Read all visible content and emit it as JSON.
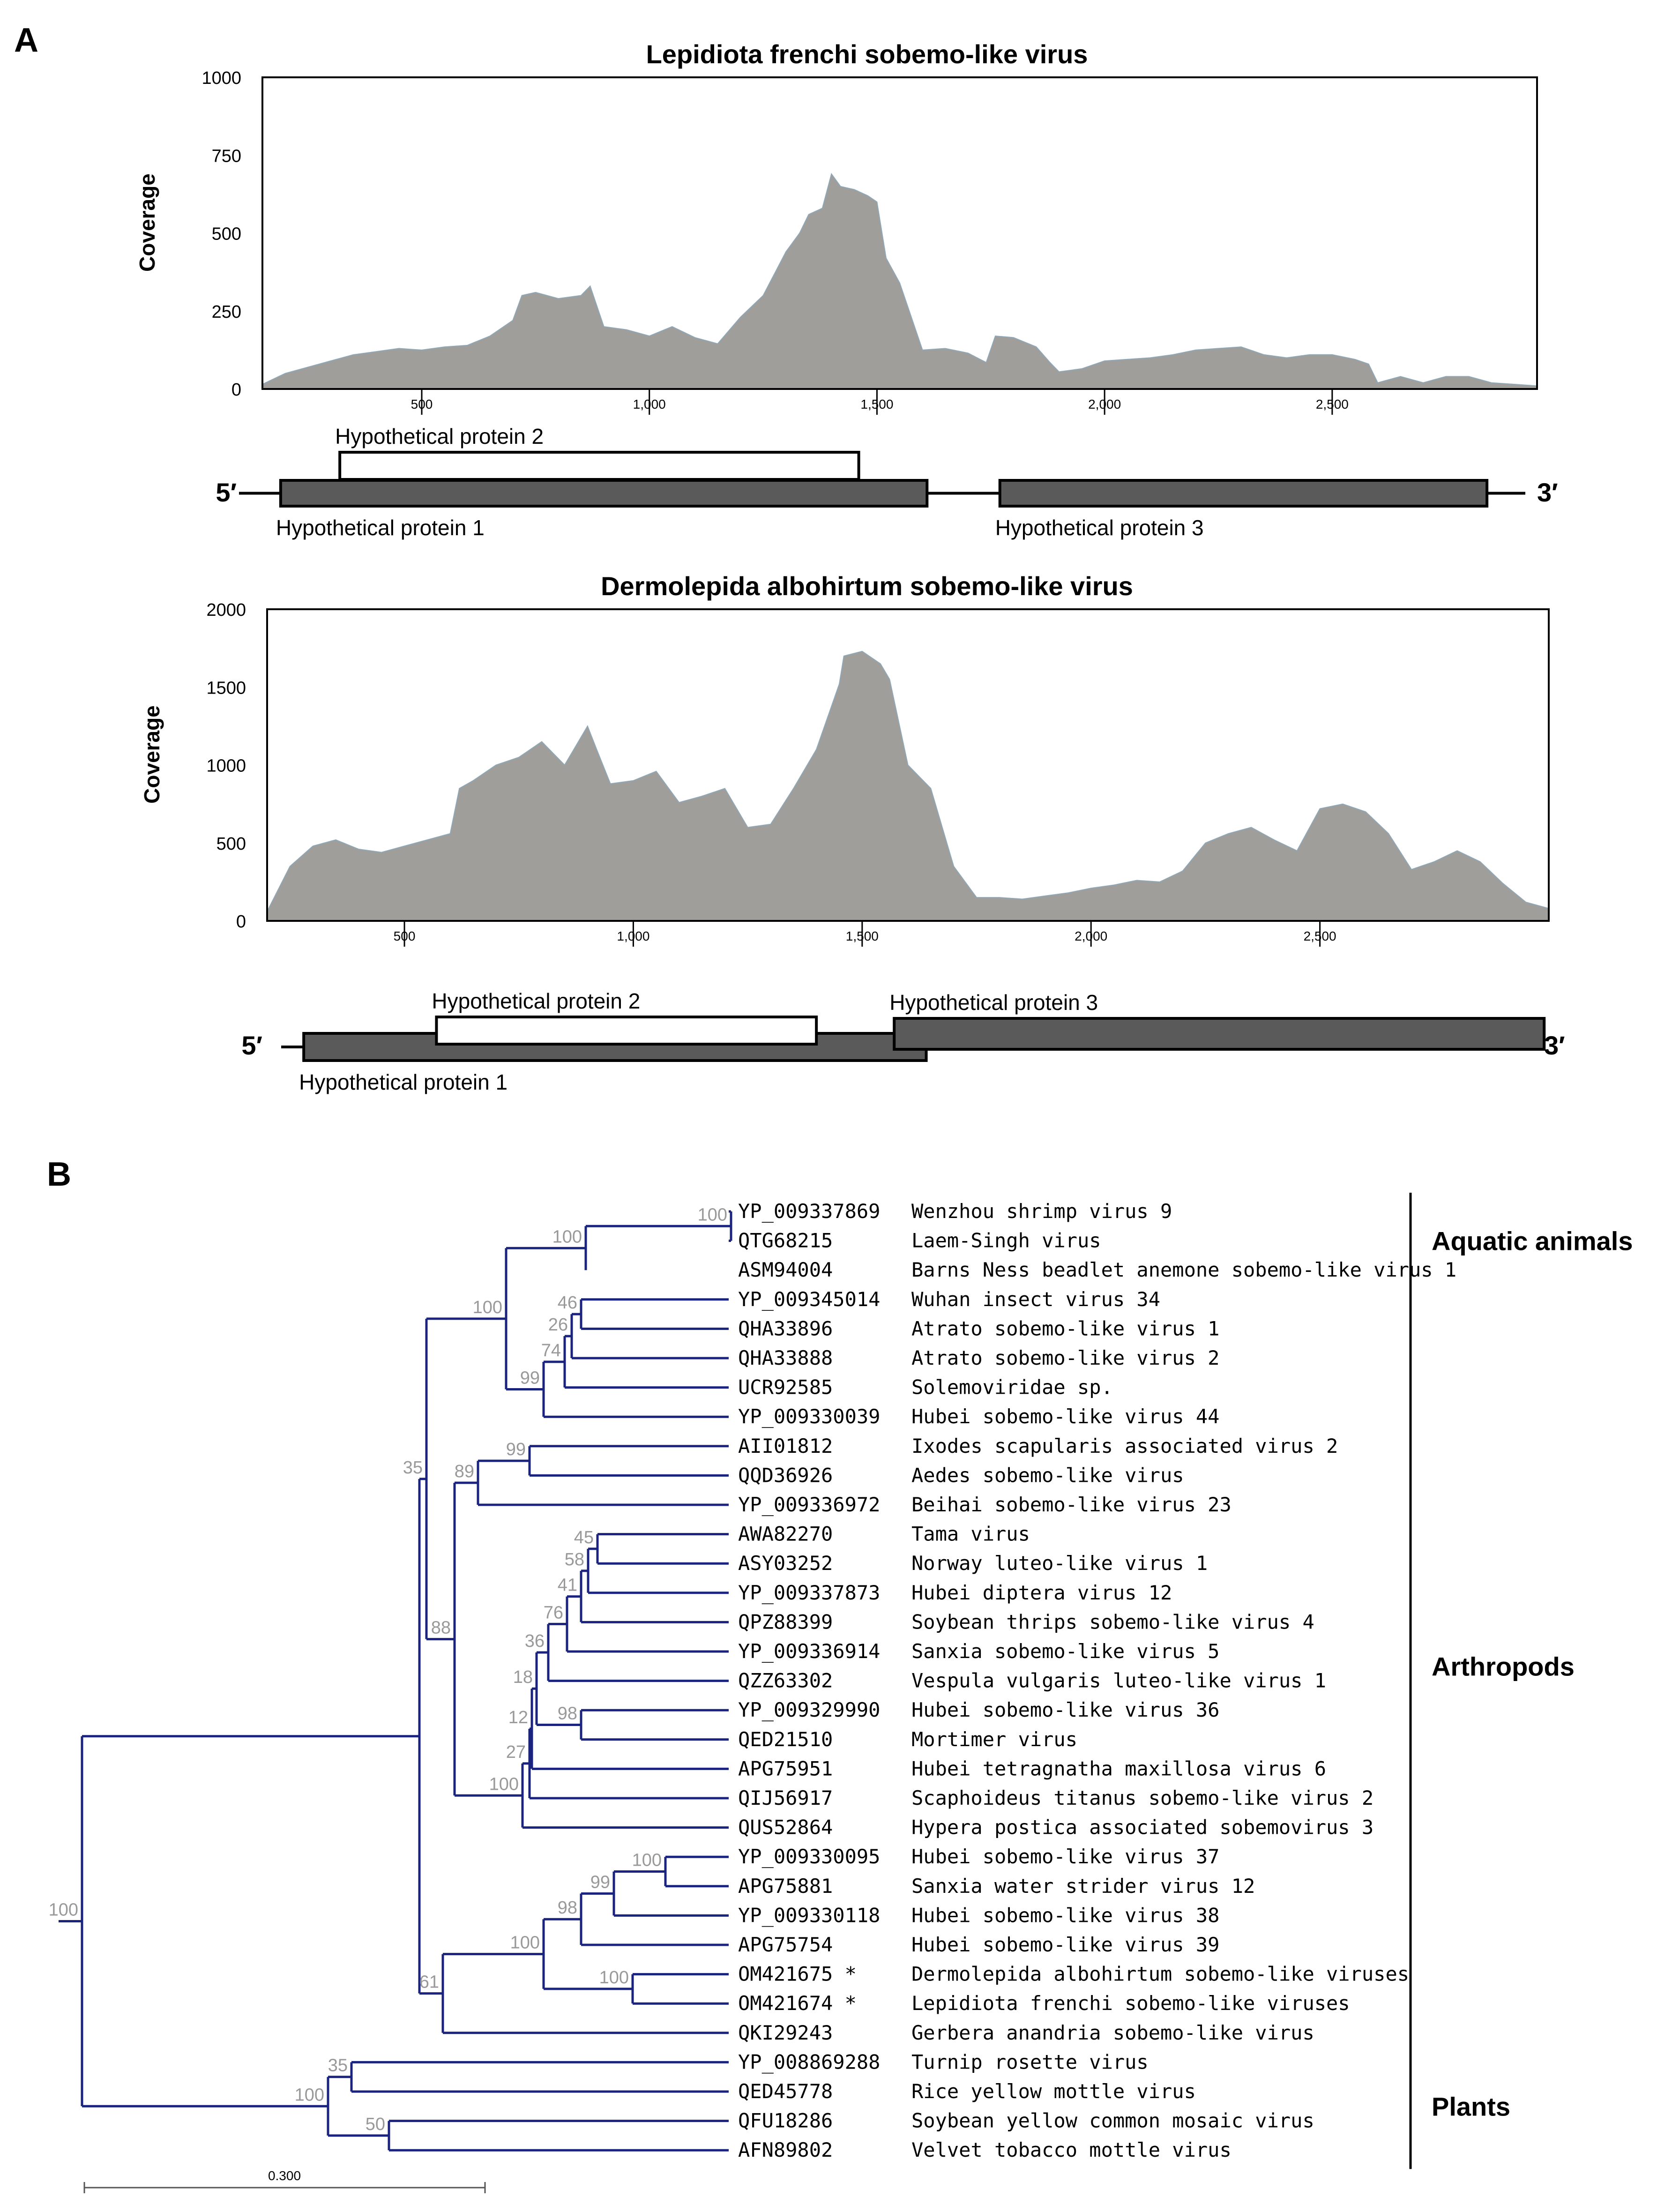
{
  "colors": {
    "coverage_fill": "#a09e9b",
    "coverage_edge": "#8fa8b8",
    "gene_dark": "#5a5a5a",
    "gene_light": "#ffffff",
    "tree": "#1a237e",
    "bootstrap": "#999999"
  },
  "panel_a": {
    "label": "A",
    "ylabel": "Coverage",
    "end5": "5′",
    "end3": "3′"
  },
  "panel_b": {
    "label": "B"
  },
  "chart_data": [
    {
      "type": "area",
      "title": "Lepidiota frenchi sobemo-like virus",
      "ylabel": "Coverage",
      "xlim": [
        150,
        2950
      ],
      "ylim": [
        0,
        1000
      ],
      "yticks": [
        "0",
        "250",
        "500",
        "750",
        "1000"
      ],
      "xticks": [
        "500",
        "1,000",
        "1,500",
        "2,000",
        "2,500"
      ],
      "x": [
        150,
        200,
        250,
        300,
        350,
        400,
        450,
        500,
        550,
        600,
        650,
        700,
        720,
        750,
        800,
        850,
        870,
        900,
        950,
        1000,
        1050,
        1100,
        1150,
        1200,
        1250,
        1300,
        1330,
        1350,
        1380,
        1400,
        1420,
        1450,
        1480,
        1500,
        1520,
        1550,
        1600,
        1650,
        1700,
        1740,
        1760,
        1800,
        1850,
        1880,
        1900,
        1950,
        2000,
        2050,
        2100,
        2150,
        2200,
        2250,
        2300,
        2350,
        2400,
        2450,
        2500,
        2550,
        2580,
        2600,
        2650,
        2700,
        2750,
        2800,
        2850,
        2900,
        2950
      ],
      "y": [
        15,
        50,
        70,
        90,
        110,
        120,
        130,
        125,
        135,
        140,
        170,
        220,
        300,
        310,
        290,
        300,
        330,
        200,
        190,
        170,
        200,
        165,
        145,
        230,
        300,
        440,
        500,
        560,
        580,
        690,
        650,
        640,
        620,
        600,
        420,
        340,
        125,
        130,
        115,
        85,
        170,
        165,
        135,
        85,
        55,
        65,
        90,
        95,
        100,
        110,
        125,
        130,
        135,
        110,
        100,
        110,
        110,
        95,
        80,
        20,
        40,
        20,
        40,
        40,
        20,
        15,
        10
      ],
      "genes": [
        {
          "name": "Hypothetical protein 1",
          "start": 190,
          "end": 1610,
          "fill": "dark",
          "label_pos": "below"
        },
        {
          "name": "Hypothetical protein 2",
          "start": 320,
          "end": 1460,
          "fill": "light",
          "label_pos": "above"
        },
        {
          "name": "Hypothetical protein 3",
          "start": 1770,
          "end": 2840,
          "fill": "dark",
          "label_pos": "below"
        }
      ]
    },
    {
      "type": "area",
      "title": "Dermolepida albohirtum sobemo-like virus",
      "ylabel": "Coverage",
      "xlim": [
        200,
        3000
      ],
      "ylim": [
        0,
        2000
      ],
      "yticks": [
        "0",
        "500",
        "1000",
        "1500",
        "2000"
      ],
      "xticks": [
        "500",
        "1,000",
        "1,500",
        "2,000",
        "2,500"
      ],
      "x": [
        200,
        250,
        300,
        350,
        400,
        450,
        500,
        550,
        600,
        620,
        650,
        700,
        750,
        800,
        850,
        900,
        920,
        950,
        1000,
        1050,
        1100,
        1150,
        1200,
        1250,
        1300,
        1350,
        1400,
        1450,
        1460,
        1500,
        1540,
        1560,
        1600,
        1650,
        1700,
        1750,
        1800,
        1850,
        1900,
        1950,
        2000,
        2050,
        2100,
        2150,
        2200,
        2250,
        2300,
        2350,
        2400,
        2450,
        2500,
        2550,
        2600,
        2650,
        2700,
        2750,
        2800,
        2850,
        2900,
        2950,
        3000
      ],
      "y": [
        60,
        350,
        480,
        520,
        460,
        440,
        480,
        520,
        560,
        850,
        900,
        1000,
        1050,
        1150,
        1000,
        1250,
        1100,
        880,
        900,
        960,
        760,
        800,
        850,
        600,
        620,
        850,
        1100,
        1520,
        1700,
        1730,
        1650,
        1550,
        1000,
        850,
        350,
        150,
        150,
        140,
        160,
        180,
        210,
        230,
        260,
        250,
        320,
        500,
        560,
        600,
        520,
        450,
        720,
        750,
        700,
        560,
        330,
        380,
        450,
        380,
        240,
        120,
        80
      ],
      "genes": [
        {
          "name": "Hypothetical protein 1",
          "start": 280,
          "end": 1640,
          "fill": "dark",
          "label_pos": "below"
        },
        {
          "name": "Hypothetical protein 2",
          "start": 570,
          "end": 1400,
          "fill": "light",
          "label_pos": "above"
        },
        {
          "name": "Hypothetical protein 3",
          "start": 1570,
          "end": 2990,
          "fill": "dark",
          "label_pos": "above"
        }
      ]
    }
  ],
  "tree": {
    "scale_label": "0.300",
    "tips": [
      {
        "acc": "YP_009337869",
        "name": "Wenzhou shrimp virus 9"
      },
      {
        "acc": "QTG68215",
        "name": "Laem-Singh virus"
      },
      {
        "acc": "ASM94004",
        "name": "Barns Ness beadlet anemone sobemo-like virus 1"
      },
      {
        "acc": "YP_009345014",
        "name": "Wuhan insect virus 34"
      },
      {
        "acc": "QHA33896",
        "name": "Atrato sobemo-like virus 1"
      },
      {
        "acc": "QHA33888",
        "name": "Atrato sobemo-like virus 2"
      },
      {
        "acc": "UCR92585",
        "name": "Solemoviridae sp."
      },
      {
        "acc": "YP_009330039",
        "name": "Hubei sobemo-like virus 44"
      },
      {
        "acc": "AII01812",
        "name": "Ixodes scapularis associated virus 2"
      },
      {
        "acc": "QQD36926",
        "name": "Aedes sobemo-like virus"
      },
      {
        "acc": "YP_009336972",
        "name": "Beihai sobemo-like virus 23"
      },
      {
        "acc": "AWA82270",
        "name": "Tama virus"
      },
      {
        "acc": "ASY03252",
        "name": "Norway luteo-like virus 1"
      },
      {
        "acc": "YP_009337873",
        "name": "Hubei diptera virus 12"
      },
      {
        "acc": "QPZ88399",
        "name": "Soybean thrips sobemo-like virus 4"
      },
      {
        "acc": "YP_009336914",
        "name": "Sanxia sobemo-like virus 5"
      },
      {
        "acc": "QZZ63302",
        "name": "Vespula vulgaris luteo-like virus 1"
      },
      {
        "acc": "YP_009329990",
        "name": "Hubei sobemo-like virus 36"
      },
      {
        "acc": "QED21510",
        "name": "Mortimer virus"
      },
      {
        "acc": "APG75951",
        "name": "Hubei tetragnatha maxillosa virus 6"
      },
      {
        "acc": "QIJ56917",
        "name": "Scaphoideus titanus sobemo-like virus 2"
      },
      {
        "acc": "QUS52864",
        "name": "Hypera postica associated sobemovirus 3"
      },
      {
        "acc": "YP_009330095",
        "name": "Hubei sobemo-like virus 37"
      },
      {
        "acc": "APG75881",
        "name": "Sanxia water strider virus 12"
      },
      {
        "acc": "YP_009330118",
        "name": "Hubei sobemo-like virus 38"
      },
      {
        "acc": "APG75754",
        "name": "Hubei sobemo-like virus 39"
      },
      {
        "acc": "OM421675 *",
        "name": "Dermolepida albohirtum sobemo-like viruses"
      },
      {
        "acc": "OM421674 *",
        "name": "Lepidiota frenchi sobemo-like viruses"
      },
      {
        "acc": "QKI29243",
        "name": "Gerbera anandria sobemo-like virus"
      },
      {
        "acc": "YP_008869288",
        "name": "Turnip rosette virus"
      },
      {
        "acc": "QED45778",
        "name": "Rice yellow mottle virus"
      },
      {
        "acc": "QFU18286",
        "name": "Soybean yellow common mosaic virus"
      },
      {
        "acc": "AFN89802",
        "name": "Velvet tobacco mottle virus"
      }
    ],
    "bootstraps": [
      "100",
      "100",
      "100",
      "46",
      "26",
      "74",
      "99",
      "99",
      "89",
      "35",
      "45",
      "58",
      "41",
      "76",
      "36",
      "18",
      "12",
      "98",
      "27",
      "100",
      "88",
      "100",
      "99",
      "98",
      "100",
      "100",
      "61",
      "100",
      "35",
      "100",
      "50"
    ],
    "groups": [
      {
        "name": "Aquatic animals"
      },
      {
        "name": "Arthropods"
      },
      {
        "name": "Plants"
      }
    ]
  }
}
